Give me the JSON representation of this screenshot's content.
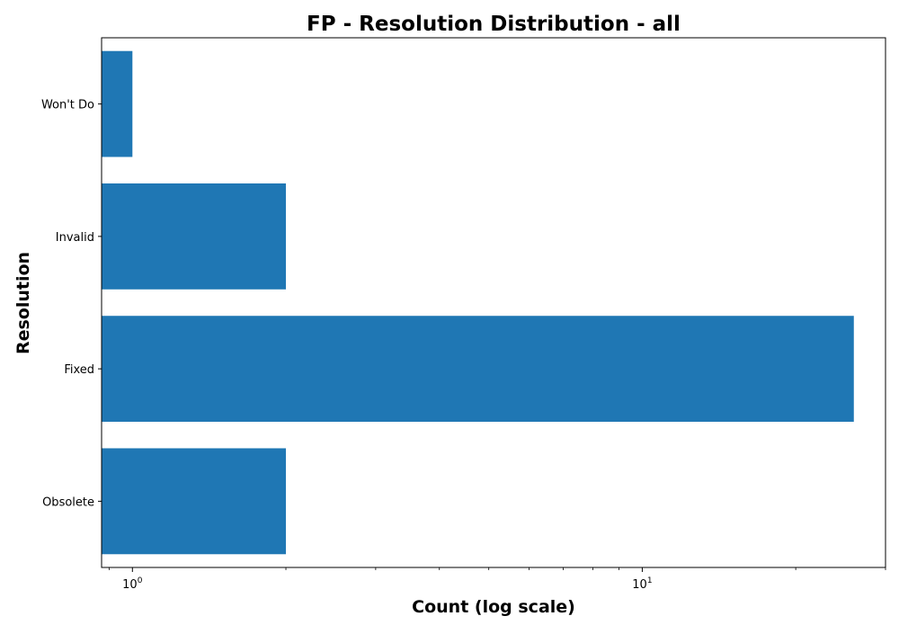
{
  "chart_data": {
    "type": "bar",
    "orientation": "horizontal",
    "title": "FP - Resolution Distribution - all",
    "xlabel": "Count (log scale)",
    "ylabel": "Resolution",
    "x_scale": "log",
    "xlim": [
      0.87,
      30
    ],
    "x_major_ticks": [
      1,
      10
    ],
    "x_major_tick_labels": [
      {
        "base": "10",
        "exp": "0"
      },
      {
        "base": "10",
        "exp": "1"
      }
    ],
    "categories": [
      "Obsolete",
      "Fixed",
      "Invalid",
      "Won't Do"
    ],
    "values": [
      2,
      26,
      2,
      1
    ],
    "bar_color": "#1f77b4",
    "grid": false,
    "legend": "none"
  }
}
